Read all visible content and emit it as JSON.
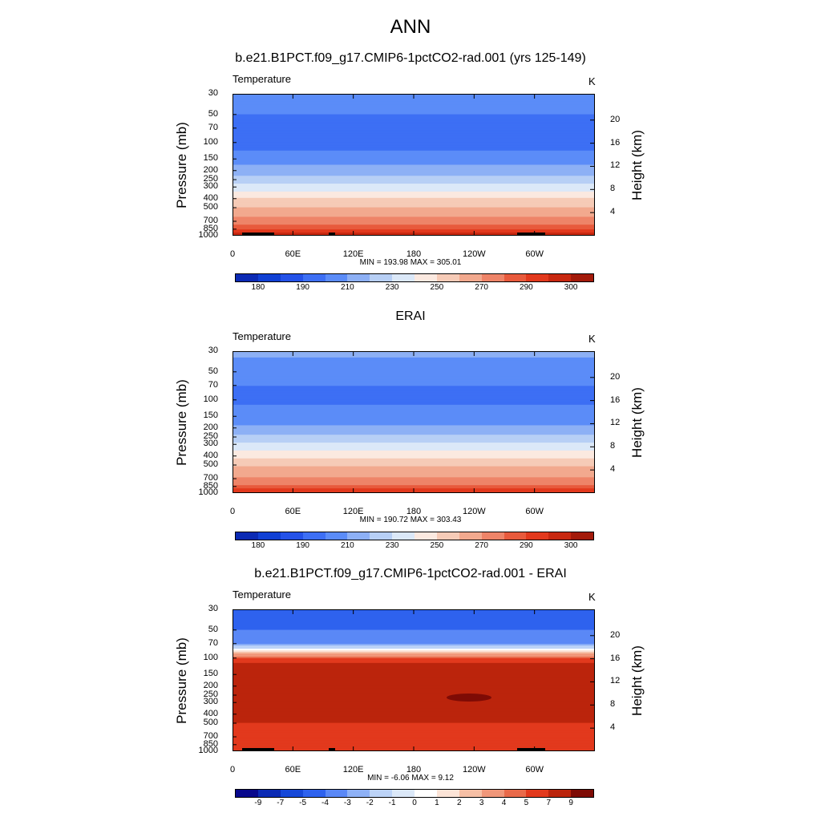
{
  "main_title": "ANN",
  "chart_data": [
    {
      "type": "heatmap",
      "title": "b.e21.B1PCT.f09_g17.CMIP6-1pctCO2-rad.001 (yrs 125-149)",
      "variable": "Temperature",
      "units": "K",
      "ylabel": "Pressure (mb)",
      "ylabel_right": "Height (km)",
      "y_scale": "log",
      "ylim": [
        1000,
        30
      ],
      "pressure_ticks": [
        "30",
        "50",
        "70",
        "100",
        "150",
        "200",
        "250",
        "300",
        "400",
        "500",
        "700",
        "850",
        "1000"
      ],
      "height_ticks": [
        "20",
        "16",
        "12",
        "8",
        "4"
      ],
      "x_ticks": [
        "0",
        "60E",
        "120E",
        "180",
        "120W",
        "60W"
      ],
      "min_max_text": "MIN = 193.98  MAX = 305.01",
      "colorbar_labels": [
        "180",
        "190",
        "210",
        "230",
        "250",
        "270",
        "290",
        "300"
      ],
      "pressure_profile": [
        [
          30,
          205
        ],
        [
          50,
          200
        ],
        [
          70,
          195
        ],
        [
          100,
          196
        ],
        [
          150,
          205
        ],
        [
          200,
          215
        ],
        [
          250,
          225
        ],
        [
          300,
          235
        ],
        [
          400,
          250
        ],
        [
          500,
          260
        ],
        [
          700,
          275
        ],
        [
          850,
          285
        ],
        [
          1000,
          295
        ]
      ]
    },
    {
      "type": "heatmap",
      "title": "ERAI",
      "variable": "Temperature",
      "units": "K",
      "ylabel": "Pressure (mb)",
      "ylabel_right": "Height (km)",
      "y_scale": "log",
      "ylim": [
        1000,
        30
      ],
      "pressure_ticks": [
        "30",
        "50",
        "70",
        "100",
        "150",
        "200",
        "250",
        "300",
        "400",
        "500",
        "700",
        "850",
        "1000"
      ],
      "height_ticks": [
        "20",
        "16",
        "12",
        "8",
        "4"
      ],
      "x_ticks": [
        "0",
        "60E",
        "120E",
        "180",
        "120W",
        "60W"
      ],
      "min_max_text": "MIN = 190.72  MAX = 303.43",
      "colorbar_labels": [
        "180",
        "190",
        "210",
        "230",
        "250",
        "270",
        "290",
        "300"
      ],
      "pressure_profile": [
        [
          30,
          212
        ],
        [
          50,
          206
        ],
        [
          70,
          200
        ],
        [
          100,
          198
        ],
        [
          150,
          204
        ],
        [
          200,
          212
        ],
        [
          250,
          222
        ],
        [
          300,
          232
        ],
        [
          400,
          247
        ],
        [
          500,
          258
        ],
        [
          700,
          272
        ],
        [
          850,
          282
        ],
        [
          1000,
          290
        ]
      ]
    },
    {
      "type": "heatmap",
      "title": "b.e21.B1PCT.f09_g17.CMIP6-1pctCO2-rad.001 - ERAI",
      "variable": "Temperature",
      "units": "K",
      "ylabel": "Pressure (mb)",
      "ylabel_right": "Height (km)",
      "y_scale": "log",
      "ylim": [
        1000,
        30
      ],
      "pressure_ticks": [
        "30",
        "50",
        "70",
        "100",
        "150",
        "200",
        "250",
        "300",
        "400",
        "500",
        "700",
        "850",
        "1000"
      ],
      "height_ticks": [
        "20",
        "16",
        "12",
        "8",
        "4"
      ],
      "x_ticks": [
        "0",
        "60E",
        "120E",
        "180",
        "120W",
        "60W"
      ],
      "min_max_text": "MIN =  -6.06  MAX =   9.12",
      "colorbar_labels": [
        "-9",
        "-7",
        "-5",
        "-4",
        "-3",
        "-2",
        "-1",
        "0",
        "1",
        "2",
        "3",
        "4",
        "5",
        "7",
        "9"
      ],
      "pressure_profile": [
        [
          30,
          -5
        ],
        [
          50,
          -4
        ],
        [
          70,
          -3
        ],
        [
          80,
          -1
        ],
        [
          90,
          2
        ],
        [
          100,
          4
        ],
        [
          150,
          7
        ],
        [
          200,
          7
        ],
        [
          300,
          7
        ],
        [
          400,
          7
        ],
        [
          500,
          5
        ],
        [
          700,
          5
        ],
        [
          850,
          4
        ],
        [
          1000,
          5
        ]
      ]
    }
  ],
  "colors": {
    "temperature_scale": [
      "#08088c",
      "#0b2ab4",
      "#1040d4",
      "#2452e8",
      "#3d6ff4",
      "#5b8cf8",
      "#8db0f5",
      "#b7cff5",
      "#dbe8f8",
      "#fbe9e0",
      "#f6cbb7",
      "#f2a98e",
      "#ee8468",
      "#e85a3c",
      "#e2391d",
      "#c82810",
      "#a31a0a",
      "#7e0b05"
    ]
  }
}
